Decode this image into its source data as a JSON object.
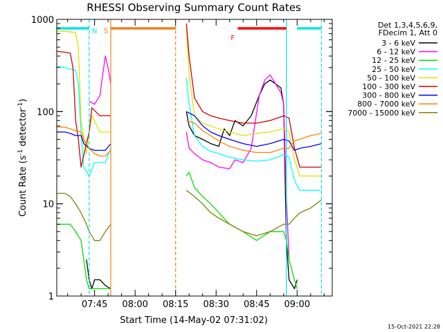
{
  "chart_data": {
    "type": "line",
    "title": "RHESSI Observing Summary Count Rates",
    "xlabel": "Start Time (14-May-02 07:31:02)",
    "ylabel_main": "Count Rate (s",
    "ylabel_sup1": "-1",
    "ylabel_mid": " detector",
    "ylabel_sup2": "-1",
    "ylabel_end": ")",
    "yscale": "log",
    "ylim": [
      1,
      1000
    ],
    "xlim_minutes": [
      "07:31",
      "09:13"
    ],
    "x_ticks": [
      "07:45",
      "08:00",
      "08:15",
      "08:30",
      "08:45",
      "09:00"
    ],
    "y_ticks": [
      "1",
      "10",
      "100",
      "1000"
    ],
    "grid": false,
    "legend_position": "top-right outside",
    "legend_header": [
      "Det 1,3,4,5,6,9,",
      "FDecim 1, Att 0"
    ],
    "timestamp": "15-Oct-2021 22:28",
    "flags": [
      {
        "label": "N",
        "color": "#00e6e6",
        "segments": [
          [
            "07:31",
            "07:43"
          ],
          [
            "09:00",
            "09:09"
          ]
        ]
      },
      {
        "label": "S",
        "color": "#f08020",
        "segments": [
          [
            "07:51",
            "08:15"
          ]
        ]
      },
      {
        "label": "F",
        "color": "#ff0000",
        "segments": [
          [
            "08:38",
            "08:56"
          ]
        ]
      }
    ],
    "markers": [
      {
        "time": "07:43",
        "color": "#00e6e6",
        "style": "dashed"
      },
      {
        "time": "07:51",
        "color": "#f08020",
        "style": "solid"
      },
      {
        "time": "08:15",
        "color": "#f08020",
        "style": "dashed"
      },
      {
        "time": "08:56",
        "color": "#00e6e6",
        "style": "solid"
      },
      {
        "time": "09:09",
        "color": "#00e6e6",
        "style": "dashed"
      }
    ],
    "series": [
      {
        "name": "3 - 6 keV",
        "color": "#000000",
        "x": [
          "07:31",
          "07:34",
          "07:37",
          "07:41",
          "07:42",
          "07:43",
          "07:44",
          "07:45",
          "07:47",
          "07:49",
          "07:51",
          "07:52",
          "08:19",
          "08:20",
          "08:22",
          "08:25",
          "08:28",
          "08:31",
          "08:33",
          "08:35",
          "08:37",
          "08:40",
          "08:43",
          "08:46",
          "08:48",
          "08:50",
          "08:52",
          "08:54",
          "08:55",
          "08:56",
          "08:57",
          "08:59",
          "09:00"
        ],
        "y": [
          null,
          null,
          null,
          null,
          2.5,
          1.5,
          1.2,
          1.5,
          1.5,
          1.3,
          1.2,
          null,
          100,
          70,
          55,
          50,
          45,
          42,
          65,
          55,
          80,
          70,
          90,
          150,
          200,
          220,
          200,
          180,
          120,
          4,
          1.5,
          1.2,
          1.5
        ]
      },
      {
        "name": "6 - 12 keV",
        "color": "#ff00ff",
        "x": [
          "07:31",
          "07:36",
          "07:40",
          "07:42",
          "07:43",
          "07:45",
          "07:47",
          "07:48",
          "07:49",
          "07:50",
          "07:51",
          "07:52",
          "08:19",
          "08:20",
          "08:22",
          "08:25",
          "08:28",
          "08:31",
          "08:35",
          "08:37",
          "08:40",
          "08:43",
          "08:46",
          "08:48",
          "08:50",
          "08:52",
          "08:54",
          "08:55",
          "08:56",
          "08:57"
        ],
        "y": [
          null,
          null,
          null,
          null,
          130,
          120,
          150,
          250,
          400,
          300,
          200,
          null,
          60,
          40,
          35,
          30,
          28,
          25,
          24,
          30,
          28,
          40,
          150,
          220,
          250,
          200,
          160,
          120,
          12,
          2.5
        ]
      },
      {
        "name": "12 - 25 keV",
        "color": "#00e000",
        "x": [
          "07:31",
          "07:34",
          "07:36",
          "07:38",
          "07:40",
          "07:41",
          "07:42",
          "07:43",
          "07:45",
          "07:47",
          "07:49",
          "07:51",
          "07:52",
          "08:19",
          "08:20",
          "08:22",
          "08:25",
          "08:28",
          "08:31",
          "08:35",
          "08:40",
          "08:45",
          "08:50",
          "08:55",
          "08:56",
          "08:57",
          "08:59",
          "09:00"
        ],
        "y": [
          6,
          6,
          6,
          5,
          4,
          2.5,
          1.5,
          1.2,
          1.2,
          1.2,
          1.2,
          1.2,
          null,
          20,
          22,
          15,
          12,
          10,
          8,
          6,
          5,
          4,
          5,
          5,
          4,
          2.5,
          1.5,
          1.2
        ]
      },
      {
        "name": "25 - 50 keV",
        "color": "#00ffff",
        "x": [
          "07:31",
          "07:34",
          "07:36",
          "07:38",
          "07:39",
          "07:40",
          "07:41",
          "07:43",
          "07:45",
          "07:47",
          "07:49",
          "07:51",
          "07:52",
          "08:19",
          "08:20",
          "08:22",
          "08:25",
          "08:28",
          "08:31",
          "08:35",
          "08:40",
          "08:45",
          "08:50",
          "08:55",
          "08:57",
          "08:59",
          "09:01",
          "09:05",
          "09:09"
        ],
        "y": [
          310,
          300,
          290,
          280,
          200,
          60,
          25,
          20,
          28,
          28,
          28,
          40,
          null,
          230,
          120,
          55,
          42,
          37,
          35,
          32,
          30,
          29,
          30,
          34,
          32,
          18,
          14,
          14,
          14
        ]
      },
      {
        "name": "50 - 100 keV",
        "color": "#e0e000",
        "x": [
          "07:31",
          "07:34",
          "07:36",
          "07:38",
          "07:39",
          "07:40",
          "07:42",
          "07:43",
          "07:44",
          "07:47",
          "07:50",
          "07:51",
          "07:52",
          "08:19",
          "08:20",
          "08:22",
          "08:25",
          "08:28",
          "08:31",
          "08:35",
          "08:40",
          "08:45",
          "08:50",
          "08:55",
          "08:57",
          "08:59",
          "09:01",
          "09:05",
          "09:09"
        ],
        "y": [
          750,
          740,
          730,
          720,
          500,
          80,
          35,
          60,
          90,
          60,
          60,
          60,
          null,
          800,
          250,
          90,
          75,
          70,
          65,
          60,
          55,
          58,
          60,
          65,
          60,
          30,
          20,
          20,
          20
        ]
      },
      {
        "name": "100 - 300 keV",
        "color": "#cc0000",
        "x": [
          "07:31",
          "07:34",
          "07:36",
          "07:37",
          "07:38",
          "07:39",
          "07:40",
          "07:42",
          "07:43",
          "07:44",
          "07:47",
          "07:50",
          "07:51",
          "07:52",
          "08:19",
          "08:20",
          "08:22",
          "08:25",
          "08:28",
          "08:31",
          "08:35",
          "08:40",
          "08:45",
          "08:50",
          "08:55",
          "08:57",
          "08:59",
          "09:01",
          "09:05",
          "09:09"
        ],
        "y": [
          450,
          440,
          430,
          300,
          80,
          50,
          25,
          45,
          60,
          110,
          90,
          90,
          90,
          null,
          900,
          400,
          140,
          100,
          90,
          85,
          80,
          75,
          75,
          80,
          90,
          85,
          40,
          25,
          25,
          25
        ]
      },
      {
        "name": "300 - 800 keV",
        "color": "#0000ff",
        "x": [
          "07:31",
          "07:34",
          "07:36",
          "07:38",
          "07:40",
          "07:41",
          "07:43",
          "07:45",
          "07:47",
          "07:49",
          "07:51",
          "07:52",
          "08:19",
          "08:22",
          "08:25",
          "08:28",
          "08:31",
          "08:35",
          "08:40",
          "08:45",
          "08:50",
          "08:55",
          "08:57",
          "08:59",
          "09:01",
          "09:05",
          "09:09"
        ],
        "y": [
          60,
          60,
          58,
          55,
          55,
          45,
          40,
          38,
          38,
          38,
          45,
          null,
          100,
          90,
          70,
          60,
          55,
          50,
          45,
          42,
          45,
          50,
          48,
          38,
          40,
          42,
          45
        ]
      },
      {
        "name": "800 - 7000 keV",
        "color": "#ff8000",
        "x": [
          "07:31",
          "07:34",
          "07:36",
          "07:38",
          "07:40",
          "07:41",
          "07:43",
          "07:45",
          "07:47",
          "07:49",
          "07:51",
          "07:52",
          "08:19",
          "08:22",
          "08:25",
          "08:28",
          "08:31",
          "08:35",
          "08:40",
          "08:45",
          "08:50",
          "08:55",
          "08:57",
          "08:59",
          "09:01",
          "09:05",
          "09:09"
        ],
        "y": [
          68,
          68,
          65,
          62,
          60,
          50,
          40,
          35,
          33,
          33,
          38,
          null,
          80,
          75,
          62,
          55,
          48,
          42,
          38,
          36,
          36,
          40,
          40,
          48,
          50,
          55,
          58
        ]
      },
      {
        "name": "7000 - 15000 keV",
        "color": "#808000",
        "x": [
          "07:31",
          "07:34",
          "07:36",
          "07:38",
          "07:40",
          "07:42",
          "07:43",
          "07:45",
          "07:47",
          "07:49",
          "07:51",
          "07:52",
          "08:19",
          "08:22",
          "08:25",
          "08:28",
          "08:31",
          "08:35",
          "08:40",
          "08:45",
          "08:50",
          "08:55",
          "08:57",
          "08:59",
          "09:01",
          "09:05",
          "09:09"
        ],
        "y": [
          13,
          13,
          12,
          10,
          8,
          6,
          5,
          4,
          4,
          5,
          6,
          null,
          14,
          12,
          10,
          8,
          7,
          6,
          5,
          4.5,
          5,
          6,
          6,
          7,
          8,
          9,
          11
        ]
      }
    ]
  }
}
